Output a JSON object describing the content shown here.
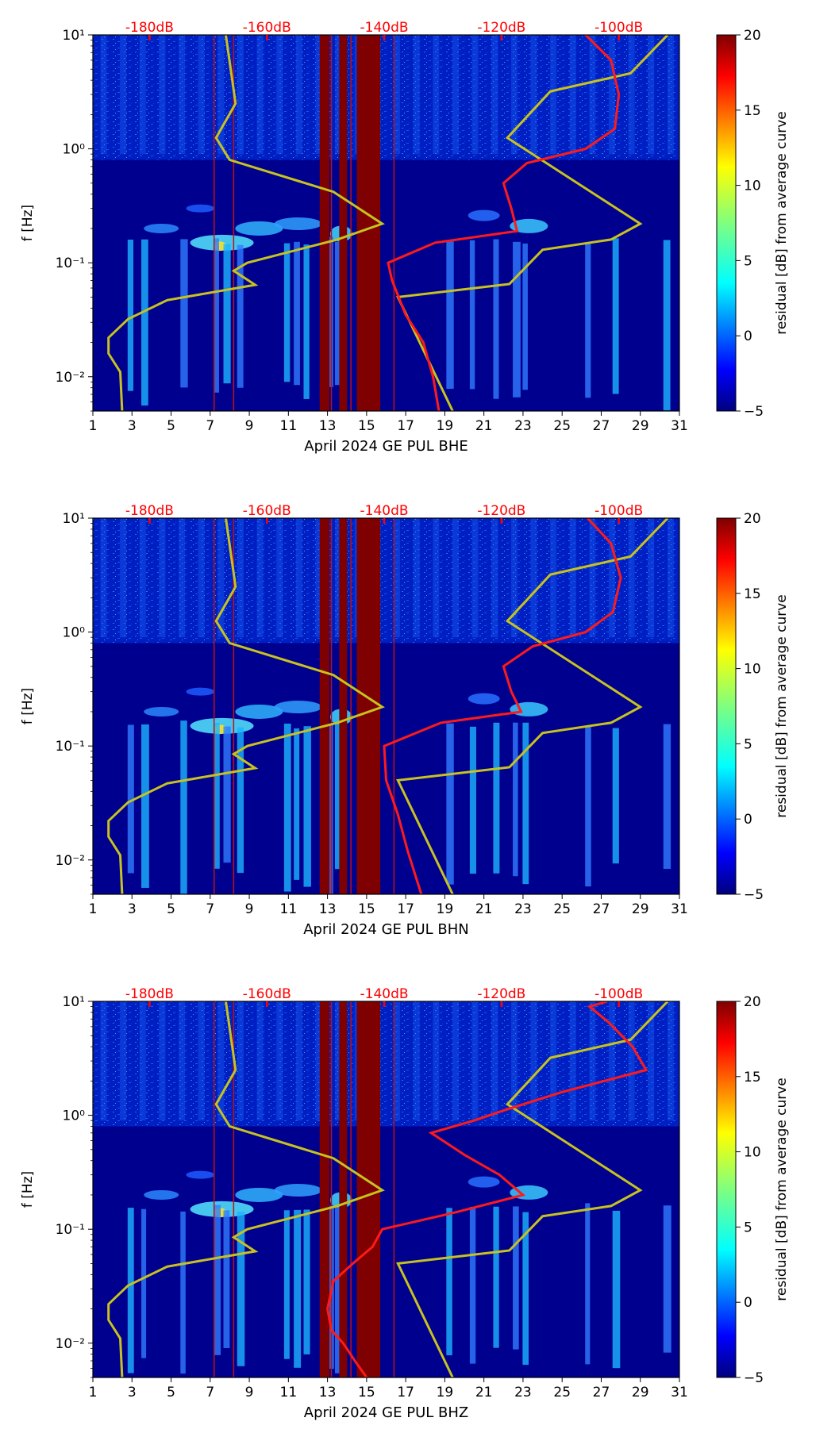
{
  "chart_data": [
    {
      "type": "heatmap",
      "xlabel": "April 2024 GE PUL  BHE",
      "ylabel": "f [Hz]",
      "xlim": [
        1,
        31
      ],
      "ylim": [
        0.005,
        10
      ],
      "yscale": "log",
      "xticks": [
        "1",
        "3",
        "5",
        "7",
        "9",
        "11",
        "13",
        "15",
        "17",
        "19",
        "21",
        "23",
        "25",
        "27",
        "29",
        "31"
      ],
      "yticks": [
        "10⁻²",
        "10⁻¹",
        "10⁰",
        "10¹"
      ],
      "top_labels": [
        "-180dB",
        "-160dB",
        "-140dB",
        "-120dB",
        "-100dB"
      ],
      "colorbar": {
        "label": "residual [dB] from average curve",
        "min": -5,
        "max": 20,
        "ticks": [
          "−5",
          "0",
          "5",
          "10",
          "15",
          "20"
        ]
      },
      "noise_models": {
        "name": "yellow",
        "points": [
          [
            2.5,
            0.005
          ],
          [
            2.4,
            0.011
          ],
          [
            1.8,
            0.016
          ],
          [
            1.8,
            0.022
          ],
          [
            2.8,
            0.032
          ],
          [
            4.8,
            0.047
          ],
          [
            9.3,
            0.064
          ],
          [
            8.2,
            0.085
          ],
          [
            8.9,
            0.1
          ],
          [
            13.5,
            0.16
          ],
          [
            15.8,
            0.22
          ],
          [
            13.3,
            0.42
          ],
          [
            8.0,
            0.8
          ],
          [
            7.3,
            1.25
          ],
          [
            8.3,
            2.5
          ],
          [
            7.8,
            10
          ]
        ],
        "points_high": [
          [
            19.4,
            0.005
          ],
          [
            16.6,
            0.05
          ],
          [
            22.3,
            0.065
          ],
          [
            24.0,
            0.13
          ],
          [
            27.5,
            0.16
          ],
          [
            29.0,
            0.22
          ],
          [
            22.2,
            1.25
          ],
          [
            24.4,
            3.2
          ],
          [
            28.5,
            4.6
          ],
          [
            30.4,
            10
          ]
        ]
      },
      "red_curve": [
        [
          18.7,
          0.005
        ],
        [
          18.4,
          0.01
        ],
        [
          17.9,
          0.02
        ],
        [
          17.0,
          0.035
        ],
        [
          16.3,
          0.07
        ],
        [
          16.1,
          0.1
        ],
        [
          18.5,
          0.15
        ],
        [
          22.7,
          0.19
        ],
        [
          22.4,
          0.3
        ],
        [
          22.0,
          0.5
        ],
        [
          23.2,
          0.75
        ],
        [
          26.2,
          1.0
        ],
        [
          27.7,
          1.5
        ],
        [
          27.9,
          3.0
        ],
        [
          27.5,
          6.0
        ],
        [
          26.2,
          10
        ]
      ]
    },
    {
      "type": "heatmap",
      "xlabel": "April 2024 GE PUL  BHN",
      "ylabel": "f [Hz]",
      "xlim": [
        1,
        31
      ],
      "ylim": [
        0.005,
        10
      ],
      "yscale": "log",
      "xticks": [
        "1",
        "3",
        "5",
        "7",
        "9",
        "11",
        "13",
        "15",
        "17",
        "19",
        "21",
        "23",
        "25",
        "27",
        "29",
        "31"
      ],
      "yticks": [
        "10⁻²",
        "10⁻¹",
        "10⁰",
        "10¹"
      ],
      "top_labels": [
        "-180dB",
        "-160dB",
        "-140dB",
        "-120dB",
        "-100dB"
      ],
      "colorbar": {
        "label": "residual [dB] from average curve",
        "min": -5,
        "max": 20,
        "ticks": [
          "−5",
          "0",
          "5",
          "10",
          "15",
          "20"
        ]
      },
      "noise_models": {
        "name": "yellow",
        "points": [
          [
            2.5,
            0.005
          ],
          [
            2.4,
            0.011
          ],
          [
            1.8,
            0.016
          ],
          [
            1.8,
            0.022
          ],
          [
            2.8,
            0.032
          ],
          [
            4.8,
            0.047
          ],
          [
            9.3,
            0.064
          ],
          [
            8.2,
            0.085
          ],
          [
            8.9,
            0.1
          ],
          [
            13.5,
            0.16
          ],
          [
            15.8,
            0.22
          ],
          [
            13.3,
            0.42
          ],
          [
            8.0,
            0.8
          ],
          [
            7.3,
            1.25
          ],
          [
            8.3,
            2.5
          ],
          [
            7.8,
            10
          ]
        ],
        "points_high": [
          [
            19.4,
            0.005
          ],
          [
            16.6,
            0.05
          ],
          [
            22.3,
            0.065
          ],
          [
            24.0,
            0.13
          ],
          [
            27.5,
            0.16
          ],
          [
            29.0,
            0.22
          ],
          [
            22.2,
            1.25
          ],
          [
            24.4,
            3.2
          ],
          [
            28.5,
            4.6
          ],
          [
            30.4,
            10
          ]
        ]
      },
      "red_curve": [
        [
          17.8,
          0.005
        ],
        [
          17.1,
          0.012
        ],
        [
          16.6,
          0.025
        ],
        [
          16.0,
          0.05
        ],
        [
          15.9,
          0.1
        ],
        [
          18.8,
          0.16
        ],
        [
          22.9,
          0.2
        ],
        [
          22.4,
          0.3
        ],
        [
          22.0,
          0.5
        ],
        [
          23.5,
          0.75
        ],
        [
          26.2,
          1.0
        ],
        [
          27.6,
          1.5
        ],
        [
          28.0,
          3.0
        ],
        [
          27.5,
          6.0
        ],
        [
          26.3,
          10
        ]
      ]
    },
    {
      "type": "heatmap",
      "xlabel": "April 2024 GE PUL  BHZ",
      "ylabel": "f [Hz]",
      "xlim": [
        1,
        31
      ],
      "ylim": [
        0.005,
        10
      ],
      "yscale": "log",
      "xticks": [
        "1",
        "3",
        "5",
        "7",
        "9",
        "11",
        "13",
        "15",
        "17",
        "19",
        "21",
        "23",
        "25",
        "27",
        "29",
        "31"
      ],
      "yticks": [
        "10⁻²",
        "10⁻¹",
        "10⁰",
        "10¹"
      ],
      "top_labels": [
        "-180dB",
        "-160dB",
        "-140dB",
        "-120dB",
        "-100dB"
      ],
      "colorbar": {
        "label": "residual [dB] from average curve",
        "min": -5,
        "max": 20,
        "ticks": [
          "−5",
          "0",
          "5",
          "10",
          "15",
          "20"
        ]
      },
      "noise_models": {
        "name": "yellow",
        "points": [
          [
            2.5,
            0.005
          ],
          [
            2.4,
            0.011
          ],
          [
            1.8,
            0.016
          ],
          [
            1.8,
            0.022
          ],
          [
            2.8,
            0.032
          ],
          [
            4.8,
            0.047
          ],
          [
            9.3,
            0.064
          ],
          [
            8.2,
            0.085
          ],
          [
            8.9,
            0.1
          ],
          [
            13.5,
            0.16
          ],
          [
            15.8,
            0.22
          ],
          [
            13.3,
            0.42
          ],
          [
            8.0,
            0.8
          ],
          [
            7.3,
            1.25
          ],
          [
            8.3,
            2.5
          ],
          [
            7.8,
            10
          ]
        ],
        "points_high": [
          [
            19.4,
            0.005
          ],
          [
            16.6,
            0.05
          ],
          [
            22.3,
            0.065
          ],
          [
            24.0,
            0.13
          ],
          [
            27.5,
            0.16
          ],
          [
            29.0,
            0.22
          ],
          [
            22.2,
            1.25
          ],
          [
            24.4,
            3.2
          ],
          [
            28.5,
            4.6
          ],
          [
            30.4,
            10
          ]
        ]
      },
      "red_curve": [
        [
          15.0,
          0.005
        ],
        [
          14.4,
          0.007
        ],
        [
          13.8,
          0.01
        ],
        [
          13.2,
          0.013
        ],
        [
          13.0,
          0.02
        ],
        [
          13.3,
          0.035
        ],
        [
          14.3,
          0.05
        ],
        [
          15.3,
          0.07
        ],
        [
          15.8,
          0.1
        ],
        [
          19.5,
          0.14
        ],
        [
          23.0,
          0.2
        ],
        [
          21.8,
          0.3
        ],
        [
          20.0,
          0.45
        ],
        [
          18.3,
          0.7
        ],
        [
          20.5,
          0.9
        ],
        [
          22.0,
          1.1
        ],
        [
          25.0,
          1.6
        ],
        [
          29.3,
          2.5
        ],
        [
          28.6,
          4.0
        ],
        [
          27.4,
          6.5
        ],
        [
          26.4,
          9.0
        ],
        [
          27.3,
          10
        ]
      ]
    }
  ]
}
